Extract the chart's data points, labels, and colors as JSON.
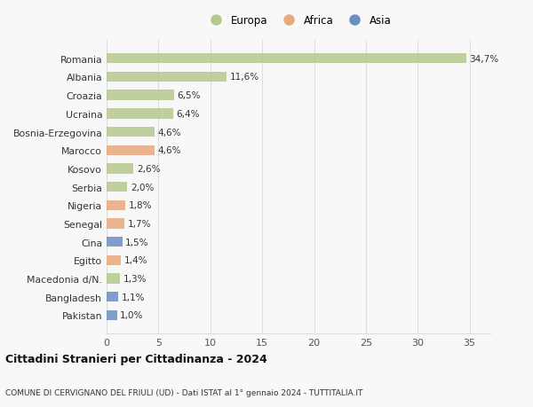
{
  "categories": [
    "Romania",
    "Albania",
    "Croazia",
    "Ucraina",
    "Bosnia-Erzegovina",
    "Marocco",
    "Kosovo",
    "Serbia",
    "Nigeria",
    "Senegal",
    "Cina",
    "Egitto",
    "Macedonia d/N.",
    "Bangladesh",
    "Pakistan"
  ],
  "values": [
    34.7,
    11.6,
    6.5,
    6.4,
    4.6,
    4.6,
    2.6,
    2.0,
    1.8,
    1.7,
    1.5,
    1.4,
    1.3,
    1.1,
    1.0
  ],
  "labels": [
    "34,7%",
    "11,6%",
    "6,5%",
    "6,4%",
    "4,6%",
    "4,6%",
    "2,6%",
    "2,0%",
    "1,8%",
    "1,7%",
    "1,5%",
    "1,4%",
    "1,3%",
    "1,1%",
    "1,0%"
  ],
  "continents": [
    "Europa",
    "Europa",
    "Europa",
    "Europa",
    "Europa",
    "Africa",
    "Europa",
    "Europa",
    "Africa",
    "Africa",
    "Asia",
    "Africa",
    "Europa",
    "Asia",
    "Asia"
  ],
  "colors": {
    "Europa": "#b5c98e",
    "Africa": "#e8a97e",
    "Asia": "#6b8fc4"
  },
  "xlim": [
    0,
    37
  ],
  "xticks": [
    0,
    5,
    10,
    15,
    20,
    25,
    30,
    35
  ],
  "title": "Cittadini Stranieri per Cittadinanza - 2024",
  "subtitle": "COMUNE DI CERVIGNANO DEL FRIULI (UD) - Dati ISTAT al 1° gennaio 2024 - TUTTITALIA.IT",
  "background_color": "#f8f8f8",
  "grid_color": "#dddddd",
  "bar_height": 0.55
}
